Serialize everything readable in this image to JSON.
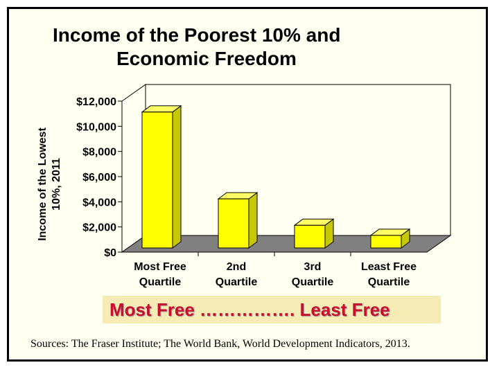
{
  "title": {
    "line1": "Income of the Poorest 10% and",
    "line2": "Economic Freedom"
  },
  "chart_data": {
    "type": "bar",
    "categories": [
      [
        "Most Free",
        "Quartile"
      ],
      [
        "2nd",
        "Quartile"
      ],
      [
        "3rd",
        "Quartile"
      ],
      [
        "Least Free",
        "Quartile"
      ]
    ],
    "values": [
      10800,
      3900,
      1800,
      1000
    ],
    "ylabel": [
      "Income of the Lowest",
      "10%, 2011"
    ],
    "yticks": [
      "$0",
      "$2,000",
      "$4,000",
      "$6,000",
      "$8,000",
      "$10,000",
      "$12,000"
    ],
    "ylim": [
      0,
      12000
    ],
    "grid": false,
    "colors": {
      "bar": "#ffff00",
      "bar_side": "#c8c800",
      "bar_top": "#ffff66",
      "floor": "#808080",
      "plot_bg": "#fffff2"
    }
  },
  "band": {
    "text": "Most Free ……………. Least Free",
    "color": "#c8102e",
    "background": "#f5ebb5"
  },
  "sources": "Sources:  The Fraser Institute; The World Bank, World Development Indicators, 2013."
}
